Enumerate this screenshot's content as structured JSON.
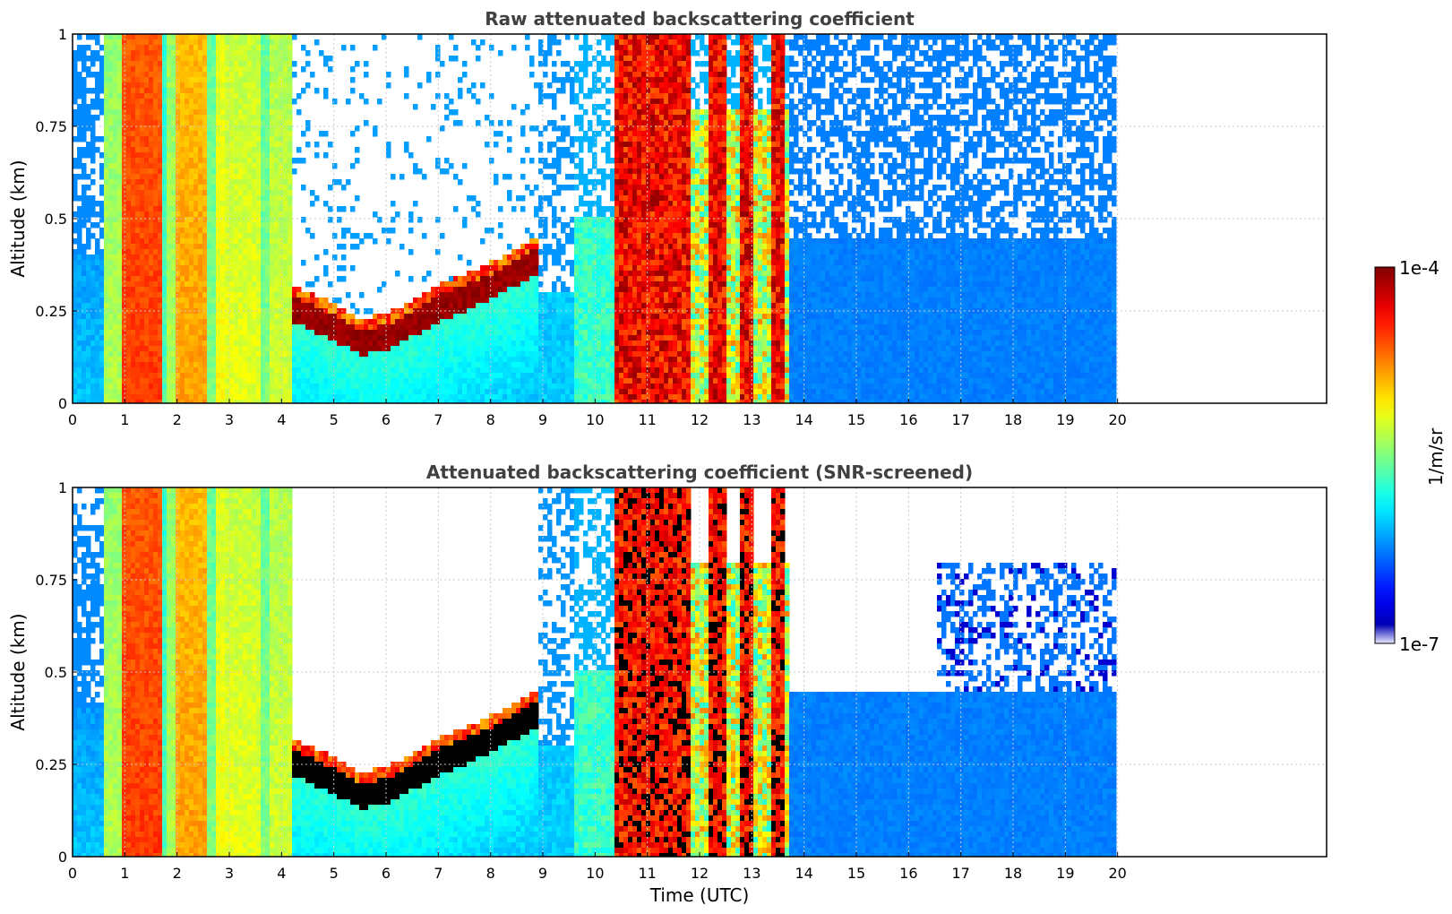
{
  "colors": {
    "title": "#404040",
    "grid": "#c8c8c8",
    "frame": "#000000",
    "background": "#ffffff",
    "saturated": "#000000"
  },
  "colorbar": {
    "max_label": "1e-4",
    "min_label": "1e-7",
    "unit_label": "1/m/sr",
    "vmin": 1e-07,
    "vmax": 0.0001,
    "colormap": "jet",
    "scale": "log"
  },
  "chart_data": [
    {
      "type": "heatmap",
      "title": "Raw attenuated backscattering coefficient",
      "xlabel": "",
      "ylabel": "Altitude (km)",
      "xlim": [
        0,
        24
      ],
      "ylim": [
        0,
        1
      ],
      "x_ticks": [
        "0",
        "1",
        "2",
        "3",
        "4",
        "5",
        "6",
        "7",
        "8",
        "9",
        "10",
        "11",
        "12",
        "13",
        "14",
        "15",
        "16",
        "17",
        "18",
        "19",
        "20"
      ],
      "y_ticks": [
        "0",
        "0.25",
        "0.5",
        "0.75",
        "1"
      ],
      "grid": true,
      "data_end_hour": 19.95,
      "features": {
        "fog_columns": [
          [
            0.6,
            0.9,
            0.55
          ],
          [
            0.9,
            1.7,
            0.82
          ],
          [
            1.7,
            1.8,
            0.45
          ],
          [
            1.8,
            1.95,
            0.55
          ],
          [
            1.95,
            2.6,
            0.72
          ],
          [
            2.6,
            2.75,
            0.5
          ],
          [
            2.75,
            2.9,
            0.62
          ],
          [
            2.9,
            3.6,
            0.6
          ],
          [
            3.6,
            3.75,
            0.5
          ],
          [
            3.75,
            4.2,
            0.58
          ]
        ],
        "cloud_base_layer": [
          [
            3.6,
            0.27
          ],
          [
            4.0,
            0.24
          ],
          [
            4.5,
            0.2
          ],
          [
            5.0,
            0.17
          ],
          [
            5.5,
            0.13
          ],
          [
            6.0,
            0.14
          ],
          [
            6.5,
            0.18
          ],
          [
            7.0,
            0.22
          ],
          [
            7.5,
            0.25
          ],
          [
            8.0,
            0.28
          ],
          [
            8.5,
            0.32
          ],
          [
            8.9,
            0.35
          ]
        ],
        "dense_columns": [
          [
            10.4,
            11.8
          ],
          [
            12.2,
            12.55
          ],
          [
            12.75,
            13.0
          ],
          [
            13.35,
            13.65
          ]
        ],
        "clear_sky_from": 14.2
      }
    },
    {
      "type": "heatmap",
      "title": "Attenuated backscattering coefficient (SNR-screened)",
      "xlabel": "Time (UTC)",
      "ylabel": "Altitude (km)",
      "xlim": [
        0,
        24
      ],
      "ylim": [
        0,
        1
      ],
      "x_ticks": [
        "0",
        "1",
        "2",
        "3",
        "4",
        "5",
        "6",
        "7",
        "8",
        "9",
        "10",
        "11",
        "12",
        "13",
        "14",
        "15",
        "16",
        "17",
        "18",
        "19",
        "20"
      ],
      "y_ticks": [
        "0",
        "0.25",
        "0.5",
        "0.75",
        "1"
      ],
      "grid": true,
      "data_end_hour": 19.95,
      "screened": true
    }
  ]
}
